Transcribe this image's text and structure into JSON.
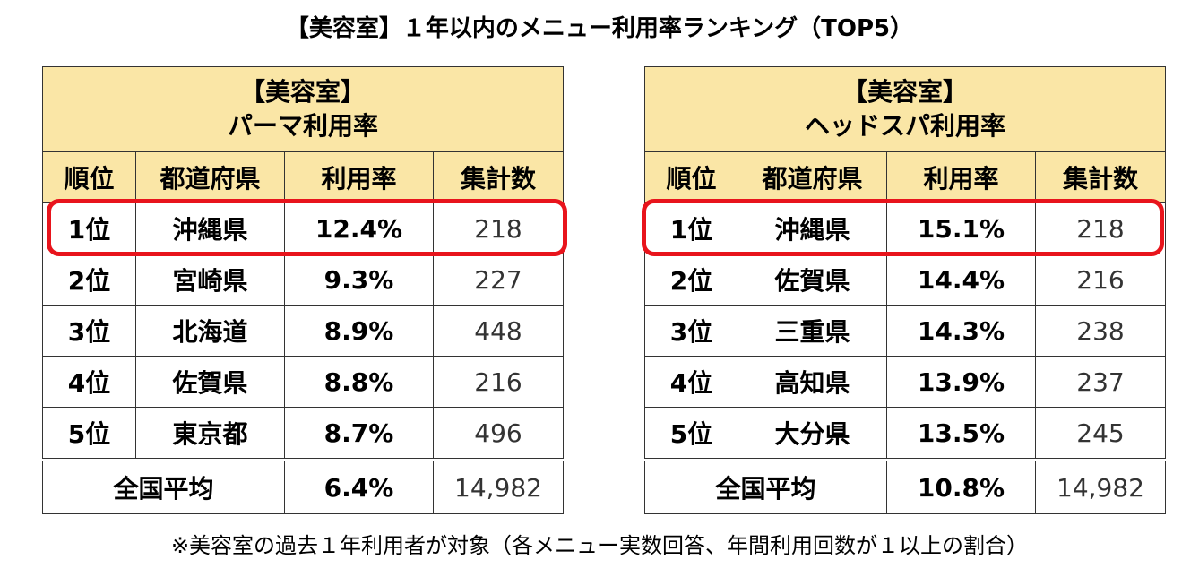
{
  "main_title": "【美容室】１年以内のメニュー利用率ランキング（TOP5）",
  "footnote": "※美容室の過去１年利用者が対象（各メニュー実数回答、年間利用回数が１以上の割合）",
  "columns": [
    "順位",
    "都道府県",
    "利用率",
    "集計数"
  ],
  "highlight_color": "#e8141c",
  "header_bg": "#fae6a6",
  "tables": [
    {
      "title_line1": "【美容室】",
      "title_line2": "パーマ利用率",
      "rows": [
        {
          "rank": "1位",
          "pref": "沖縄県",
          "rate": "12.4%",
          "count": "218"
        },
        {
          "rank": "2位",
          "pref": "宮崎県",
          "rate": "9.3%",
          "count": "227"
        },
        {
          "rank": "3位",
          "pref": "北海道",
          "rate": "8.9%",
          "count": "448"
        },
        {
          "rank": "4位",
          "pref": "佐賀県",
          "rate": "8.8%",
          "count": "216"
        },
        {
          "rank": "5位",
          "pref": "東京都",
          "rate": "8.7%",
          "count": "496"
        }
      ],
      "average": {
        "label": "全国平均",
        "rate": "6.4%",
        "count": "14,982"
      }
    },
    {
      "title_line1": "【美容室】",
      "title_line2": "ヘッドスパ利用率",
      "rows": [
        {
          "rank": "1位",
          "pref": "沖縄県",
          "rate": "15.1%",
          "count": "218"
        },
        {
          "rank": "2位",
          "pref": "佐賀県",
          "rate": "14.4%",
          "count": "216"
        },
        {
          "rank": "3位",
          "pref": "三重県",
          "rate": "14.3%",
          "count": "238"
        },
        {
          "rank": "4位",
          "pref": "高知県",
          "rate": "13.9%",
          "count": "237"
        },
        {
          "rank": "5位",
          "pref": "大分県",
          "rate": "13.5%",
          "count": "245"
        }
      ],
      "average": {
        "label": "全国平均",
        "rate": "10.8%",
        "count": "14,982"
      }
    }
  ]
}
